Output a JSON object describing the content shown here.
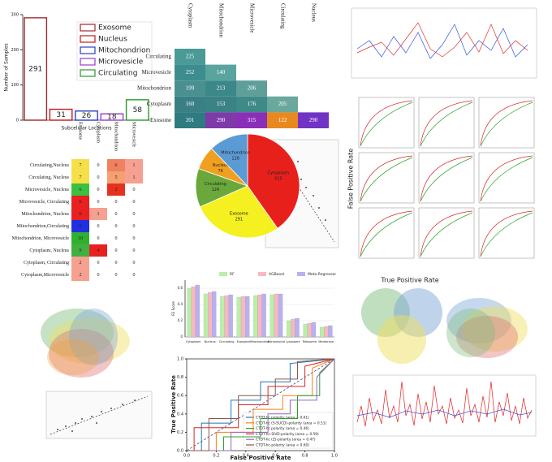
{
  "chart_data": [
    {
      "type": "bar",
      "categories": [
        "Exosome",
        "Nucleus",
        "Mitochondrion",
        "Microvesicle",
        "Circulating"
      ],
      "values": [
        291,
        31,
        26,
        18,
        58
      ],
      "colors": [
        "#a0282c",
        "#c81818",
        "#2a3fc0",
        "#9a3ccc",
        "#2a9a2a"
      ],
      "xlabel": "Subcelular Locations",
      "ylabel": "Number of Samples",
      "ylim": [
        0,
        300
      ],
      "yticks": [
        0,
        100,
        200,
        300
      ],
      "legend": "upper right"
    },
    {
      "type": "heatmap",
      "rows": [
        "Circulating",
        "Microvesicle",
        "Mitochondrion",
        "Cytoplasm",
        "Exosome"
      ],
      "columns": [
        "Cytoplasm",
        "Mitochondrion",
        "Microvesicle",
        "Circulating",
        "Nucleus"
      ],
      "values": [
        [
          225,
          null,
          null,
          null,
          null
        ],
        [
          252,
          140,
          null,
          null,
          null
        ],
        [
          199,
          213,
          206,
          null,
          null
        ],
        [
          160,
          153,
          176,
          205,
          null
        ],
        [
          201,
          290,
          315,
          122,
          290
        ]
      ],
      "colors": [
        [
          "#4a9a98",
          null,
          null,
          null,
          null
        ],
        [
          "#3d8d8f",
          "#5aa4a0",
          null,
          null,
          null
        ],
        [
          "#4a9090",
          "#3c8888",
          "#5f9f9a",
          null,
          null
        ],
        [
          "#3a7f86",
          "#3a8286",
          "#3f8a88",
          "#6aa89c",
          null
        ],
        [
          "#2e7b80",
          "#7e3aa8",
          "#8a2fb8",
          "#e8891f",
          "#7033c4"
        ]
      ]
    },
    {
      "type": "pie",
      "labels": [
        "Cytoplasm",
        "Exosome",
        "Circulating",
        "Nucleus",
        "Mitochondrion"
      ],
      "values": [
        415,
        291,
        124,
        76,
        126
      ],
      "colors": [
        "#e8201c",
        "#f5f020",
        "#6aa83c",
        "#f0a020",
        "#5b9bd5"
      ]
    },
    {
      "type": "heatmap",
      "rows": [
        "Circulating,Nucleus",
        "Circulating, Nucleus",
        "Microvesicle, Nucleus",
        "Microvesicle, Circulating",
        "Mitochondrion, Nucleus",
        "Mitochondrion,Circulating",
        "Mitochondrion, Microvesicle",
        "Cytoplasm, Nucleus",
        "Cytoplasm, Circulating",
        "Cytoplasm,Microvesicle"
      ],
      "columns": [
        "Exosome",
        "Cytoplasm",
        "Mitochondrion",
        "Microvesicle"
      ],
      "values": [
        [
          7,
          0,
          6,
          1
        ],
        [
          7,
          0,
          5,
          1
        ],
        [
          6,
          0,
          2,
          0
        ],
        [
          6,
          0,
          0,
          0
        ],
        [
          6,
          1,
          0,
          0
        ],
        [
          0,
          0,
          0,
          0
        ],
        [
          10,
          0,
          0,
          0
        ],
        [
          9,
          4,
          0,
          0
        ],
        [
          2,
          0,
          0,
          0
        ],
        [
          2,
          0,
          0,
          0
        ]
      ],
      "colors": [
        [
          "#f5e04a",
          "#ffffff",
          "#f08060",
          "#f5a090"
        ],
        [
          "#f5e04a",
          "#ffffff",
          "#f5a070",
          "#f5a090"
        ],
        [
          "#3cc040",
          "#ffffff",
          "#e83020",
          "#ffffff"
        ],
        [
          "#e82020",
          "#ffffff",
          "#ffffff",
          "#ffffff"
        ],
        [
          "#e82020",
          "#f5a090",
          "#ffffff",
          "#ffffff"
        ],
        [
          "#2030e0",
          "#ffffff",
          "#ffffff",
          "#ffffff"
        ],
        [
          "#30b030",
          "#ffffff",
          "#ffffff",
          "#ffffff"
        ],
        [
          "#40b040",
          "#e82020",
          "#ffffff",
          "#ffffff"
        ],
        [
          "#f5a090",
          "#ffffff",
          "#ffffff",
          "#ffffff"
        ],
        [
          "#f5a090",
          "#ffffff",
          "#ffffff",
          "#ffffff"
        ]
      ]
    },
    {
      "type": "grouped-bar",
      "ylabel": "R2 Score",
      "categories": [
        "Cytoplasm",
        "Nucleus",
        "Circulating",
        "Exosome",
        "Mitochondrion",
        "Microvesicle",
        "Lysosome",
        "Ribosome",
        "Membrane"
      ],
      "series": [
        {
          "name": "RF",
          "color": "#b8f0a8",
          "values": [
            0.6,
            0.53,
            0.5,
            0.49,
            0.51,
            0.52,
            0.2,
            0.16,
            0.12
          ]
        },
        {
          "name": "XGBoost",
          "color": "#f8b8c0",
          "values": [
            0.62,
            0.55,
            0.51,
            0.5,
            0.52,
            0.53,
            0.22,
            0.17,
            0.13
          ]
        },
        {
          "name": "Meta-Regressor",
          "color": "#b8b0f0",
          "values": [
            0.64,
            0.56,
            0.52,
            0.5,
            0.53,
            0.53,
            0.23,
            0.18,
            0.14
          ]
        }
      ],
      "ylim": [
        0,
        0.7
      ],
      "yticks": [
        0,
        0.2,
        0.4,
        0.6
      ]
    },
    {
      "type": "line",
      "xlabel": "False Positive Rate",
      "ylabel": "True Positive Rate",
      "xlim": [
        0,
        1
      ],
      "ylim": [
        0,
        1
      ],
      "xticks": [
        {
          "value": 0,
          "label": "0.0"
        },
        0.2,
        0.4,
        0.6,
        0.8,
        {
          "value": 1,
          "label": "1.0"
        }
      ],
      "yticks": [
        {
          "value": 0,
          "label": "0.0"
        },
        0.2,
        0.4,
        0.6,
        0.8,
        {
          "value": 1,
          "label": "1.0"
        }
      ],
      "series": [
        {
          "name": "CTDT-hc polarity (area = 0.61)",
          "color": "#1f77b4",
          "x": [
            0,
            0.1,
            0.1,
            0.3,
            0.3,
            0.5,
            0.5,
            0.7,
            0.7,
            1
          ],
          "y": [
            0,
            0,
            0.3,
            0.3,
            0.55,
            0.55,
            0.75,
            0.75,
            0.95,
            1
          ]
        },
        {
          "name": "CTDT-hc (S-SUCD)-polarity (area = 0.51)",
          "color": "#ff7f0e",
          "x": [
            0,
            0.2,
            0.2,
            0.45,
            0.45,
            0.65,
            0.65,
            0.85,
            0.85,
            1
          ],
          "y": [
            0,
            0,
            0.2,
            0.2,
            0.45,
            0.45,
            0.6,
            0.6,
            0.9,
            1
          ]
        },
        {
          "name": "CTDT-hc polarity (area = 0.46)",
          "color": "#2ca02c",
          "x": [
            0,
            0.25,
            0.25,
            0.5,
            0.5,
            0.75,
            0.75,
            0.9,
            0.9,
            1
          ],
          "y": [
            0,
            0,
            0.15,
            0.15,
            0.35,
            0.35,
            0.6,
            0.6,
            0.85,
            1
          ]
        },
        {
          "name": "CTDT-hc-SIVD-polarity (area = 0.59)",
          "color": "#d62728",
          "x": [
            0,
            0.05,
            0.05,
            0.35,
            0.35,
            0.55,
            0.55,
            0.8,
            0.8,
            1
          ],
          "y": [
            0,
            0,
            0.25,
            0.25,
            0.5,
            0.5,
            0.7,
            0.7,
            0.92,
            1
          ]
        },
        {
          "name": "CTDT-hc (Z)-polarity (area = 0.47)",
          "color": "#9467bd",
          "x": [
            0,
            0.3,
            0.3,
            0.55,
            0.55,
            0.7,
            0.7,
            0.88,
            0.88,
            1
          ],
          "y": [
            0,
            0,
            0.2,
            0.2,
            0.4,
            0.4,
            0.55,
            0.55,
            0.8,
            1
          ]
        },
        {
          "name": "CTDT-hc-polarity (area = 0.60)",
          "color": "#8c564b",
          "x": [
            0,
            0.15,
            0.15,
            0.35,
            0.35,
            0.6,
            0.6,
            0.75,
            0.75,
            1
          ],
          "y": [
            0,
            0,
            0.35,
            0.35,
            0.6,
            0.6,
            0.78,
            0.78,
            0.97,
            1
          ]
        }
      ]
    }
  ],
  "side_panel": {
    "xlabel": "True Positive Rate",
    "ylabel": "False Positive Rate"
  }
}
